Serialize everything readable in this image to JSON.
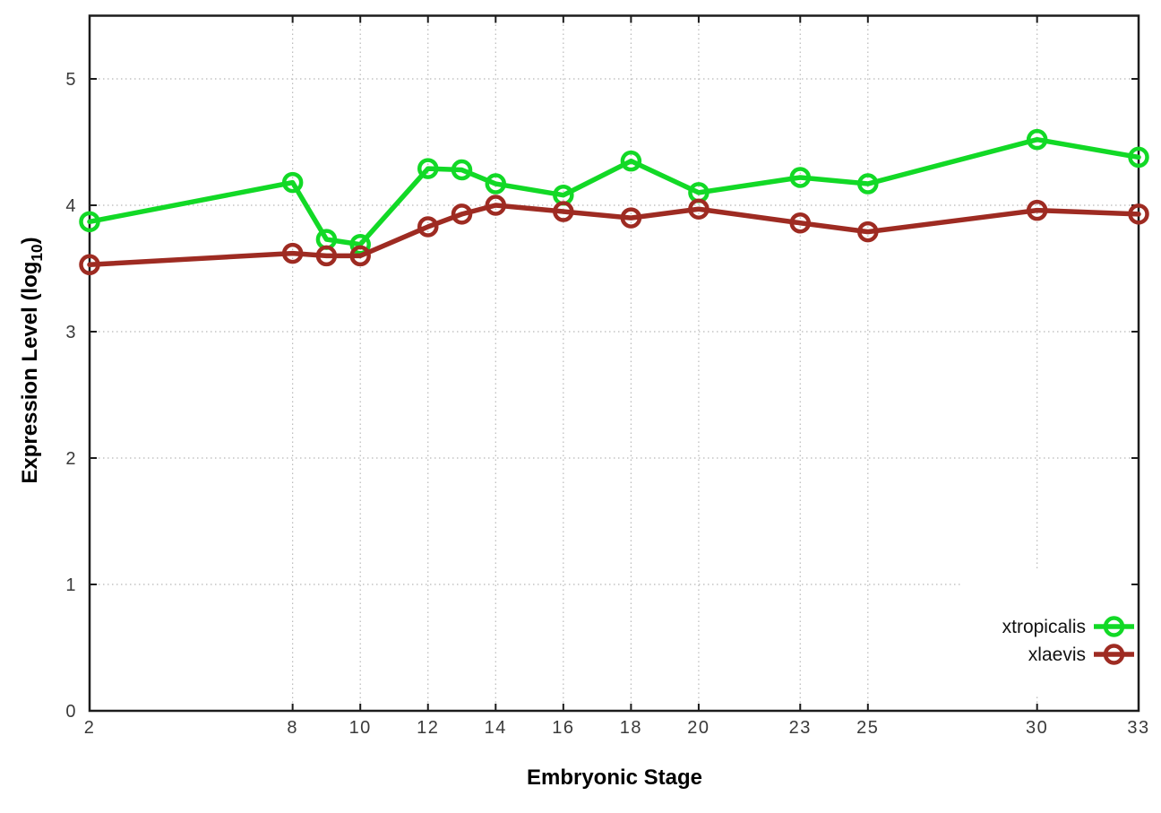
{
  "chart_data": {
    "type": "line",
    "title": "",
    "xlabel": "Embryonic Stage",
    "ylabel": "Expression Level (log10)",
    "ylabel_parts": {
      "prefix": "Expression Level (log",
      "sub": "10",
      "suffix": ")"
    },
    "x": [
      2,
      8,
      9,
      10,
      12,
      13,
      14,
      16,
      18,
      20,
      23,
      25,
      30,
      33
    ],
    "x_tick_labels": [
      "2",
      "8",
      "10",
      "12",
      "14",
      "16",
      "18",
      "20",
      "23",
      "25",
      "30",
      "33"
    ],
    "x_tick_values": [
      2,
      8,
      10,
      12,
      14,
      16,
      18,
      20,
      23,
      25,
      30,
      33
    ],
    "y_tick_labels": [
      "0",
      "1",
      "2",
      "3",
      "4",
      "5"
    ],
    "y_tick_values": [
      0,
      1,
      2,
      3,
      4,
      5
    ],
    "xlim": [
      2,
      33
    ],
    "ylim": [
      0,
      5.5
    ],
    "grid": true,
    "legend_position": "bottom-right",
    "series": [
      {
        "name": "xtropicalis",
        "color": "#12d926",
        "values": [
          3.87,
          4.18,
          3.73,
          3.69,
          4.29,
          4.28,
          4.17,
          4.08,
          4.35,
          4.1,
          4.22,
          4.17,
          4.52,
          4.38
        ]
      },
      {
        "name": "xlaevis",
        "color": "#9e2b22",
        "values": [
          3.53,
          3.62,
          3.6,
          3.6,
          3.83,
          3.93,
          4.0,
          3.95,
          3.9,
          3.97,
          3.86,
          3.79,
          3.96,
          3.93
        ]
      }
    ]
  },
  "style": {
    "grid_color": "#b8b8b8",
    "border_color": "#1c1c1c",
    "tick_label_color": "#3a3a3a",
    "legend_bg": "#ffffff",
    "legend_text_color": "#111111"
  }
}
